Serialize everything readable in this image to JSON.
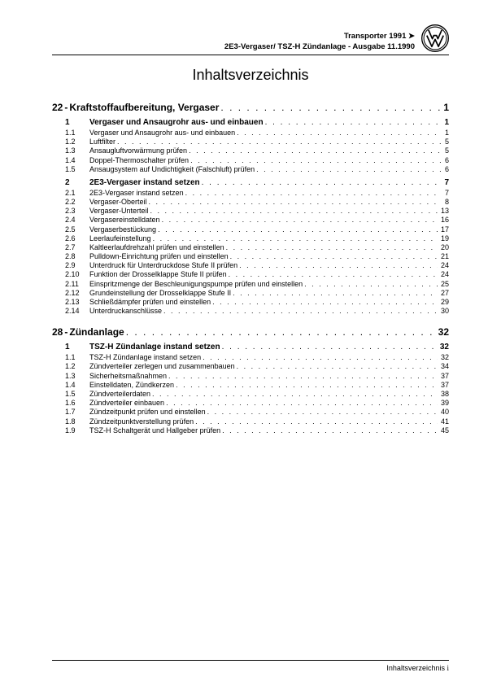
{
  "header": {
    "line1_left": "Transporter 1991",
    "line1_arrow": "➤",
    "line2": "2E3-Vergaser/ TSZ-H Zündanlage - Ausgabe 11.1990"
  },
  "title": "Inhaltsverzeichnis",
  "dotfill": ". . . . . . . . . . . . . . . . . . . . . . . . . . . . . . . . . . . . . . . . . . . . . . . . . . . . . . . . . . . . . . . . . . . . . . . . . . . . . . . . . . . . . . . . . . . . . . . . . . . .",
  "sections": [
    {
      "num": "22",
      "dash": " - ",
      "label": "Kraftstoffaufbereitung, Vergaser",
      "page": "1",
      "groups": [
        {
          "num": "1",
          "label": "Vergaser und Ansaugrohr aus- und einbauen",
          "page": "1",
          "entries": [
            {
              "num": "1.1",
              "label": "Vergaser und Ansaugrohr aus- und einbauen",
              "page": "1"
            },
            {
              "num": "1.2",
              "label": "Luftfilter",
              "page": "5"
            },
            {
              "num": "1.3",
              "label": "Ansaugluftvorwärmung prüfen",
              "page": "5"
            },
            {
              "num": "1.4",
              "label": "Doppel-Thermoschalter prüfen",
              "page": "6"
            },
            {
              "num": "1.5",
              "label": "Ansaugsystem auf Undichtigkeit (Falschluft) prüfen",
              "page": "6"
            }
          ]
        },
        {
          "num": "2",
          "label": "2E3-Vergaser instand setzen",
          "page": "7",
          "entries": [
            {
              "num": "2.1",
              "label": "2E3-Vergaser instand setzen",
              "page": "7"
            },
            {
              "num": "2.2",
              "label": "Vergaser-Oberteil",
              "page": "8"
            },
            {
              "num": "2.3",
              "label": "Vergaser-Unterteil",
              "page": "13"
            },
            {
              "num": "2.4",
              "label": "Vergasereinstelldaten",
              "page": "16"
            },
            {
              "num": "2.5",
              "label": "Vergaserbestückung",
              "page": "17"
            },
            {
              "num": "2.6",
              "label": "Leerlaufeinstellung",
              "page": "19"
            },
            {
              "num": "2.7",
              "label": "Kaltleerlaufdrehzahl prüfen und einstellen",
              "page": "20"
            },
            {
              "num": "2.8",
              "label": "Pulldown-Einrichtung prüfen und einstellen",
              "page": "21"
            },
            {
              "num": "2.9",
              "label": "Unterdruck für Unterdruckdose Stufe II prüfen",
              "page": "24"
            },
            {
              "num": "2.10",
              "label": "Funktion der Drosselklappe Stufe II prüfen",
              "page": "24"
            },
            {
              "num": "2.11",
              "label": "Einspritzmenge der Beschleunigungspumpe prüfen und einstellen",
              "page": "25"
            },
            {
              "num": "2.12",
              "label": "Grundeinstellung der Drosselklappe Stufe II",
              "page": "27"
            },
            {
              "num": "2.13",
              "label": "Schließdämpfer prüfen und einstellen",
              "page": "29"
            },
            {
              "num": "2.14",
              "label": "Unterdruckanschlüsse",
              "page": "30"
            }
          ]
        }
      ]
    },
    {
      "num": "28",
      "dash": " - ",
      "label": "Zündanlage",
      "page": "32",
      "groups": [
        {
          "num": "1",
          "label": "TSZ-H Zündanlage instand setzen",
          "page": "32",
          "entries": [
            {
              "num": "1.1",
              "label": "TSZ-H Zündanlage instand setzen",
              "page": "32"
            },
            {
              "num": "1.2",
              "label": "Zündverteiler zerlegen und zusammenbauen",
              "page": "34"
            },
            {
              "num": "1.3",
              "label": "Sicherheitsmaßnahmen",
              "page": "37"
            },
            {
              "num": "1.4",
              "label": "Einstelldaten, Zündkerzen",
              "page": "37"
            },
            {
              "num": "1.5",
              "label": "Zündverteilerdaten",
              "page": "38"
            },
            {
              "num": "1.6",
              "label": "Zündverteiler einbauen",
              "page": "39"
            },
            {
              "num": "1.7",
              "label": "Zündzeitpunkt prüfen und einstellen",
              "page": "40"
            },
            {
              "num": "1.8",
              "label": "Zündzeitpunktverstellung prüfen",
              "page": "41"
            },
            {
              "num": "1.9",
              "label": "TSZ-H Schaltgerät und Hallgeber prüfen",
              "page": "45"
            }
          ]
        }
      ]
    }
  ],
  "footer": {
    "label": "Inhaltsverzeichnis",
    "page": "i"
  }
}
